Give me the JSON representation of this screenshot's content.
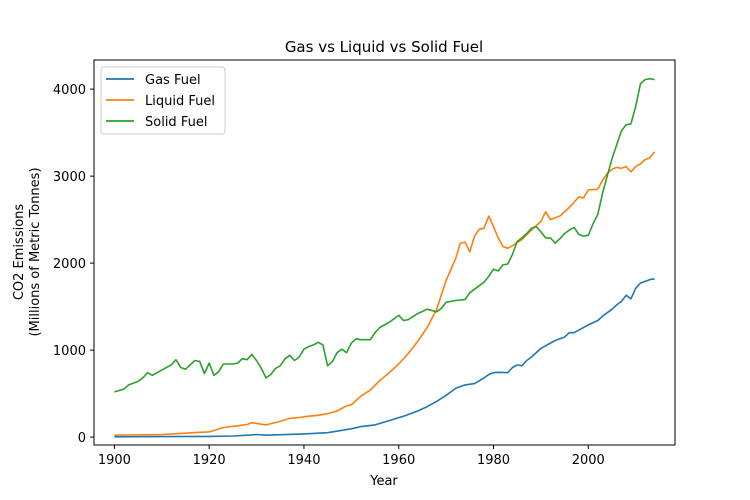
{
  "chart_data": {
    "type": "line",
    "title": "Gas vs Liquid vs Solid Fuel",
    "xlabel": "Year",
    "ylabel": [
      "CO2 Emissions",
      "(Millions of Metric Tonnes)"
    ],
    "xlim": [
      1895.7,
      2018.3
    ],
    "ylim": [
      -91,
      4335
    ],
    "xticks": [
      1900,
      1920,
      1940,
      1960,
      1980,
      2000
    ],
    "yticks": [
      0,
      1000,
      2000,
      3000,
      4000
    ],
    "grid": false,
    "legend": "upper-left",
    "series": [
      {
        "name": "Gas Fuel",
        "color": "#1f77b4",
        "points": [
          [
            1900,
            3
          ],
          [
            1910,
            5
          ],
          [
            1920,
            8
          ],
          [
            1925,
            12
          ],
          [
            1929,
            25
          ],
          [
            1930,
            30
          ],
          [
            1932,
            22
          ],
          [
            1936,
            28
          ],
          [
            1940,
            37
          ],
          [
            1945,
            50
          ],
          [
            1950,
            95
          ],
          [
            1952,
            120
          ],
          [
            1955,
            140
          ],
          [
            1958,
            190
          ],
          [
            1961,
            240
          ],
          [
            1964,
            300
          ],
          [
            1966,
            350
          ],
          [
            1968,
            410
          ],
          [
            1970,
            480
          ],
          [
            1972,
            560
          ],
          [
            1974,
            600
          ],
          [
            1976,
            615
          ],
          [
            1978,
            680
          ],
          [
            1979,
            720
          ],
          [
            1980,
            740
          ],
          [
            1981,
            745
          ],
          [
            1983,
            740
          ],
          [
            1984,
            800
          ],
          [
            1985,
            830
          ],
          [
            1986,
            820
          ],
          [
            1987,
            880
          ],
          [
            1988,
            920
          ],
          [
            1990,
            1020
          ],
          [
            1993,
            1110
          ],
          [
            1995,
            1150
          ],
          [
            1996,
            1200
          ],
          [
            1997,
            1200
          ],
          [
            1998,
            1230
          ],
          [
            2000,
            1290
          ],
          [
            2002,
            1340
          ],
          [
            2003,
            1390
          ],
          [
            2005,
            1470
          ],
          [
            2006,
            1520
          ],
          [
            2007,
            1560
          ],
          [
            2008,
            1630
          ],
          [
            2009,
            1590
          ],
          [
            2010,
            1710
          ],
          [
            2011,
            1770
          ],
          [
            2012,
            1790
          ],
          [
            2013,
            1810
          ],
          [
            2014,
            1820
          ]
        ]
      },
      {
        "name": "Liquid Fuel",
        "color": "#ff7f0e",
        "points": [
          [
            1900,
            22
          ],
          [
            1910,
            30
          ],
          [
            1915,
            45
          ],
          [
            1918,
            55
          ],
          [
            1920,
            60
          ],
          [
            1923,
            110
          ],
          [
            1926,
            130
          ],
          [
            1928,
            145
          ],
          [
            1929,
            165
          ],
          [
            1932,
            140
          ],
          [
            1935,
            180
          ],
          [
            1937,
            215
          ],
          [
            1939,
            225
          ],
          [
            1941,
            240
          ],
          [
            1943,
            250
          ],
          [
            1945,
            270
          ],
          [
            1947,
            300
          ],
          [
            1949,
            360
          ],
          [
            1950,
            370
          ],
          [
            1952,
            470
          ],
          [
            1954,
            540
          ],
          [
            1956,
            650
          ],
          [
            1958,
            740
          ],
          [
            1960,
            840
          ],
          [
            1962,
            960
          ],
          [
            1964,
            1100
          ],
          [
            1966,
            1260
          ],
          [
            1968,
            1470
          ],
          [
            1970,
            1800
          ],
          [
            1972,
            2050
          ],
          [
            1973,
            2230
          ],
          [
            1974,
            2240
          ],
          [
            1975,
            2130
          ],
          [
            1976,
            2310
          ],
          [
            1977,
            2390
          ],
          [
            1978,
            2400
          ],
          [
            1979,
            2540
          ],
          [
            1980,
            2420
          ],
          [
            1981,
            2290
          ],
          [
            1982,
            2190
          ],
          [
            1983,
            2170
          ],
          [
            1984,
            2200
          ],
          [
            1986,
            2270
          ],
          [
            1988,
            2380
          ],
          [
            1990,
            2480
          ],
          [
            1991,
            2590
          ],
          [
            1992,
            2500
          ],
          [
            1994,
            2540
          ],
          [
            1996,
            2640
          ],
          [
            1998,
            2760
          ],
          [
            1999,
            2750
          ],
          [
            2000,
            2840
          ],
          [
            2002,
            2850
          ],
          [
            2003,
            2950
          ],
          [
            2004,
            3030
          ],
          [
            2005,
            3080
          ],
          [
            2006,
            3100
          ],
          [
            2007,
            3090
          ],
          [
            2008,
            3110
          ],
          [
            2009,
            3050
          ],
          [
            2010,
            3110
          ],
          [
            2011,
            3140
          ],
          [
            2012,
            3190
          ],
          [
            2013,
            3210
          ],
          [
            2014,
            3280
          ]
        ]
      },
      {
        "name": "Solid Fuel",
        "color": "#2ca02c",
        "points": [
          [
            1900,
            520
          ],
          [
            1902,
            550
          ],
          [
            1903,
            600
          ],
          [
            1905,
            640
          ],
          [
            1906,
            680
          ],
          [
            1907,
            740
          ],
          [
            1908,
            710
          ],
          [
            1910,
            770
          ],
          [
            1912,
            830
          ],
          [
            1913,
            890
          ],
          [
            1914,
            800
          ],
          [
            1915,
            780
          ],
          [
            1917,
            880
          ],
          [
            1918,
            870
          ],
          [
            1919,
            730
          ],
          [
            1920,
            850
          ],
          [
            1921,
            710
          ],
          [
            1922,
            750
          ],
          [
            1923,
            840
          ],
          [
            1925,
            840
          ],
          [
            1926,
            850
          ],
          [
            1927,
            900
          ],
          [
            1928,
            890
          ],
          [
            1929,
            950
          ],
          [
            1930,
            880
          ],
          [
            1931,
            790
          ],
          [
            1932,
            680
          ],
          [
            1933,
            720
          ],
          [
            1934,
            790
          ],
          [
            1935,
            820
          ],
          [
            1936,
            900
          ],
          [
            1937,
            940
          ],
          [
            1938,
            880
          ],
          [
            1939,
            920
          ],
          [
            1940,
            1010
          ],
          [
            1941,
            1040
          ],
          [
            1942,
            1060
          ],
          [
            1943,
            1090
          ],
          [
            1944,
            1060
          ],
          [
            1945,
            820
          ],
          [
            1946,
            870
          ],
          [
            1947,
            970
          ],
          [
            1948,
            1010
          ],
          [
            1949,
            970
          ],
          [
            1950,
            1080
          ],
          [
            1951,
            1130
          ],
          [
            1952,
            1120
          ],
          [
            1954,
            1120
          ],
          [
            1955,
            1200
          ],
          [
            1956,
            1260
          ],
          [
            1958,
            1320
          ],
          [
            1960,
            1400
          ],
          [
            1961,
            1340
          ],
          [
            1962,
            1350
          ],
          [
            1964,
            1420
          ],
          [
            1966,
            1470
          ],
          [
            1968,
            1440
          ],
          [
            1969,
            1480
          ],
          [
            1970,
            1550
          ],
          [
            1972,
            1570
          ],
          [
            1974,
            1580
          ],
          [
            1975,
            1660
          ],
          [
            1976,
            1700
          ],
          [
            1978,
            1780
          ],
          [
            1979,
            1850
          ],
          [
            1980,
            1930
          ],
          [
            1981,
            1910
          ],
          [
            1982,
            1980
          ],
          [
            1983,
            1990
          ],
          [
            1984,
            2100
          ],
          [
            1985,
            2250
          ],
          [
            1986,
            2290
          ],
          [
            1987,
            2340
          ],
          [
            1988,
            2400
          ],
          [
            1989,
            2420
          ],
          [
            1990,
            2360
          ],
          [
            1991,
            2290
          ],
          [
            1992,
            2290
          ],
          [
            1993,
            2230
          ],
          [
            1994,
            2280
          ],
          [
            1995,
            2340
          ],
          [
            1996,
            2380
          ],
          [
            1997,
            2410
          ],
          [
            1998,
            2330
          ],
          [
            1999,
            2310
          ],
          [
            2000,
            2320
          ],
          [
            2001,
            2450
          ],
          [
            2002,
            2560
          ],
          [
            2003,
            2800
          ],
          [
            2004,
            3000
          ],
          [
            2005,
            3200
          ],
          [
            2006,
            3360
          ],
          [
            2007,
            3520
          ],
          [
            2008,
            3590
          ],
          [
            2009,
            3600
          ],
          [
            2010,
            3800
          ],
          [
            2011,
            4060
          ],
          [
            2012,
            4110
          ],
          [
            2013,
            4120
          ],
          [
            2014,
            4110
          ]
        ]
      }
    ]
  }
}
